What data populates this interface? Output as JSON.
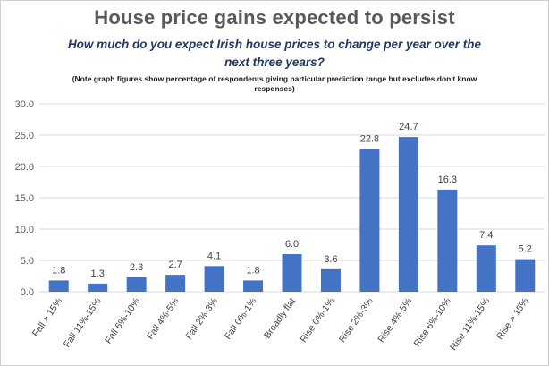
{
  "title": "House price gains expected to persist",
  "subtitle": "How much do you expect Irish house prices to change per year over the next three years?",
  "note": "(Note graph figures show percentage of respondents giving particular prediction range but excludes don't know responses)",
  "colors": {
    "bar": "#4472c4",
    "grid": "#d9d9d9"
  },
  "chart_data": {
    "type": "bar",
    "categories": [
      "Fall > 15%",
      "Fall 11%-15%",
      "Fall 6%-10%",
      "Fall 4%-5%",
      "Fall 2%-3%",
      "Fall 0%-1%",
      "Broadly flat",
      "Rise 0%-1%",
      "Rise 2%-3%",
      "Rise 4%-5%",
      "Rise 6%-10%",
      "Rise  11%-15%",
      "Rise > 15%"
    ],
    "values": [
      1.8,
      1.3,
      2.3,
      2.7,
      4.1,
      1.8,
      6.0,
      3.6,
      22.8,
      24.7,
      16.3,
      7.4,
      5.2
    ],
    "data_labels": [
      "1.8",
      "1.3",
      "2.3",
      "2.7",
      "4.1",
      "1.8",
      "6.0",
      "3.6",
      "22.8",
      "24.7",
      "16.3",
      "7.4",
      "5.2"
    ],
    "yticks": [
      "0.0",
      "5.0",
      "10.0",
      "15.0",
      "20.0",
      "25.0",
      "30.0"
    ],
    "ylim": [
      0,
      30
    ],
    "grid": true,
    "legend": "none"
  }
}
